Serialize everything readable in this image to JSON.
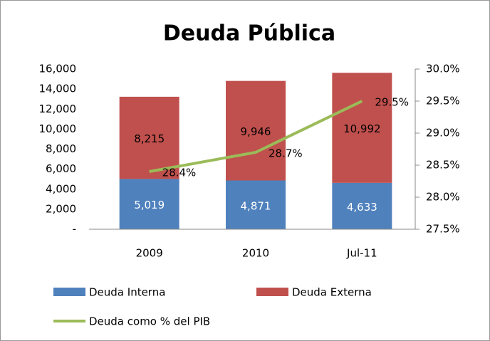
{
  "chart_data": {
    "type": "bar",
    "title": "Deuda Pública",
    "stacked": true,
    "categories": [
      "2009",
      "2010",
      "Jul-11"
    ],
    "series": [
      {
        "name": "Deuda Interna",
        "type": "bar",
        "color": "#4f81bd",
        "values": [
          5019,
          4871,
          4633
        ],
        "value_labels": [
          "5,019",
          "4,871",
          "4,633"
        ]
      },
      {
        "name": "Deuda Externa",
        "type": "bar",
        "color": "#c0504d",
        "values": [
          8215,
          9946,
          10992
        ],
        "value_labels": [
          "8,215",
          "9,946",
          "10,992"
        ]
      },
      {
        "name": "Deuda como % del PIB",
        "type": "line",
        "axis": "y2",
        "color": "#9bbb59",
        "values": [
          28.4,
          28.7,
          29.5
        ],
        "value_labels": [
          "28.4%",
          "28.7%",
          "29.5%"
        ]
      }
    ],
    "ylim": [
      0,
      16000
    ],
    "yticks": [
      {
        "value": 0,
        "label": "-"
      },
      {
        "value": 2000,
        "label": "2,000"
      },
      {
        "value": 4000,
        "label": "4,000"
      },
      {
        "value": 6000,
        "label": "6,000"
      },
      {
        "value": 8000,
        "label": "8,000"
      },
      {
        "value": 10000,
        "label": "10,000"
      },
      {
        "value": 12000,
        "label": "12,000"
      },
      {
        "value": 14000,
        "label": "14,000"
      },
      {
        "value": 16000,
        "label": "16,000"
      }
    ],
    "y2lim": [
      27.5,
      30
    ],
    "y2ticks": [
      {
        "value": 27.5,
        "label": "27.5%"
      },
      {
        "value": 28,
        "label": "28.0%"
      },
      {
        "value": 28.5,
        "label": "28.5%"
      },
      {
        "value": 29,
        "label": "29.0%"
      },
      {
        "value": 29.5,
        "label": "29.5%"
      },
      {
        "value": 30,
        "label": "30.0%"
      }
    ],
    "legend": "bottom",
    "grid": false
  }
}
